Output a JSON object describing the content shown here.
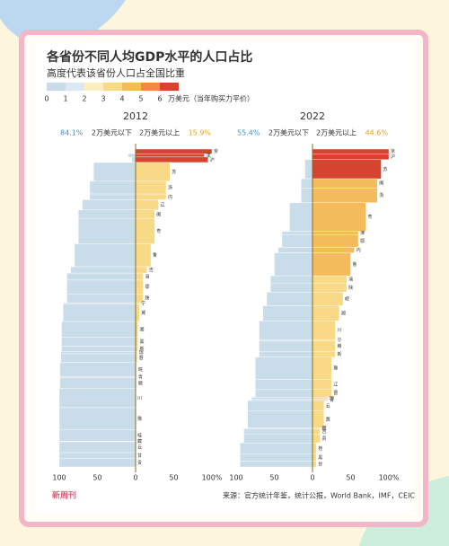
{
  "title": "各省份不同人均GDP水平的人口占比",
  "subtitle": "高度代表该省份人口占全国比重",
  "legend": {
    "ticks": [
      0,
      1,
      2,
      3,
      4,
      5,
      6
    ],
    "unit": "万美元（当年购买力平价）",
    "colors": [
      "#c9dcea",
      "#dce8f1",
      "#fbefc0",
      "#f8d985",
      "#f4bb5c",
      "#ec8c44",
      "#d6432e"
    ]
  },
  "source": "来源：官方统计年鉴，统计公报，World Bank，IMF，CEIC",
  "brand": "新周刊",
  "chart_data": [
    {
      "type": "bar",
      "title": "2012",
      "shares": [
        84.1,
        15.9
      ],
      "share_labels": [
        "84.1%",
        "15.9%"
      ],
      "categories": [
        "京",
        "津",
        "沪",
        "苏",
        "浙",
        "内",
        "辽",
        "闽",
        "粤",
        "鲁",
        "吉",
        "渝",
        "鄂",
        "陕",
        "宁",
        "冀",
        "湘",
        "黑",
        "新",
        "琼",
        "晋",
        "皖",
        "青",
        "赣",
        "川",
        "豫",
        "桂",
        "藏",
        "云",
        "甘",
        "贵"
      ],
      "heights": [
        1.5,
        1,
        1.7,
        5.9,
        4,
        1.8,
        3.2,
        2.8,
        7.8,
        7.2,
        2,
        2.2,
        4.3,
        2.8,
        0.5,
        5.4,
        4.9,
        2.8,
        1.7,
        0.7,
        2.7,
        4.5,
        0.4,
        3.3,
        6,
        7,
        3.5,
        0.2,
        3.4,
        1.9,
        2.6
      ],
      "series": [
        {
          "name": "2万美元以下",
          "color": "#c9dcea",
          "values": [
            0,
            10,
            5,
            55,
            60,
            60,
            70,
            75,
            75,
            80,
            85,
            90,
            90,
            90,
            95,
            95,
            97,
            97,
            97,
            98,
            98,
            99,
            99,
            99,
            100,
            100,
            100,
            100,
            100,
            100,
            100
          ]
        },
        {
          "name": "2万美元以上",
          "color": "#f8d985",
          "values": [
            100,
            90,
            95,
            45,
            40,
            40,
            30,
            25,
            25,
            20,
            15,
            10,
            10,
            10,
            5,
            5,
            3,
            3,
            3,
            2,
            2,
            1,
            1,
            1,
            0,
            0,
            0,
            0,
            0,
            0,
            0
          ]
        }
      ],
      "xlim": [
        0,
        100
      ],
      "xticks_left": [
        100,
        50,
        0
      ],
      "xticks_right": [
        50,
        {
          "value": 100,
          "label": "100%"
        }
      ]
    },
    {
      "type": "bar",
      "title": "2022",
      "shares": [
        55.4,
        44.6
      ],
      "share_labels": [
        "55.4%",
        "44.6%"
      ],
      "categories": [
        "京",
        "沪",
        "苏",
        "闽",
        "浙",
        "粤",
        "津",
        "鄂",
        "内",
        "鲁",
        "渝",
        "陕",
        "皖",
        "湘",
        "川",
        "宁",
        "赣",
        "新",
        "豫",
        "辽",
        "晋",
        "琼",
        "青",
        "云",
        "冀",
        "藏",
        "吉",
        "贵",
        "桂",
        "黑",
        "甘"
      ],
      "heights": [
        1.5,
        1.8,
        6,
        2.9,
        4.6,
        9.0,
        1,
        4,
        1.7,
        7.2,
        2.3,
        2.8,
        4.3,
        4.7,
        5.9,
        0.5,
        3.2,
        1.8,
        7,
        3,
        2.5,
        0.7,
        0.4,
        3.3,
        5.3,
        0.3,
        1.7,
        2.7,
        3.5,
        2.2,
        1.8
      ],
      "series": [
        {
          "name": "2万美元以下",
          "color": "#c9dcea",
          "values": [
            0,
            0,
            10,
            15,
            15,
            30,
            40,
            40,
            45,
            50,
            55,
            55,
            60,
            65,
            70,
            70,
            70,
            70,
            75,
            75,
            75,
            80,
            80,
            85,
            85,
            90,
            90,
            90,
            95,
            95,
            95
          ]
        },
        {
          "name": "2万美元以上",
          "color": "#f8d985",
          "values": [
            100,
            100,
            90,
            85,
            85,
            70,
            60,
            60,
            55,
            50,
            45,
            45,
            40,
            35,
            30,
            30,
            30,
            30,
            25,
            25,
            25,
            20,
            20,
            15,
            15,
            10,
            10,
            10,
            5,
            5,
            5
          ]
        }
      ],
      "xlim": [
        0,
        100
      ],
      "xticks_left": [
        100,
        50,
        0
      ],
      "xticks_right": [
        50,
        {
          "value": 100,
          "label": "100%"
        }
      ]
    }
  ]
}
